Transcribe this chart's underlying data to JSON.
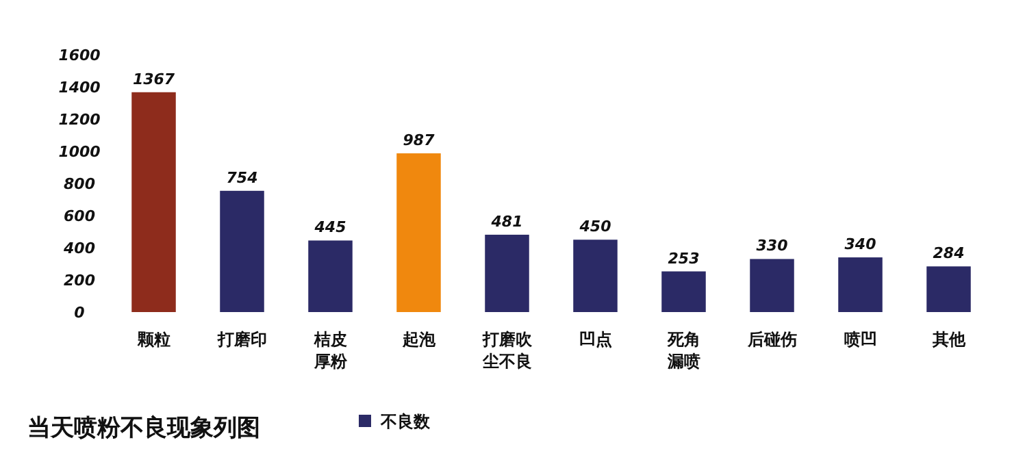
{
  "chart_data": {
    "type": "bar",
    "title": "当天喷粉不良现象列图",
    "categories": [
      "颗粒",
      "打磨印",
      "桔皮厚粉",
      "起泡",
      "打磨吹尘不良",
      "凹点",
      "死角漏喷",
      "后碰伤",
      "喷凹",
      "其他"
    ],
    "series": [
      {
        "name": "不良数",
        "color": "#2b2a66",
        "colors": [
          "#8e2c1c",
          "#2b2a66",
          "#2b2a66",
          "#f0880e",
          "#2b2a66",
          "#2b2a66",
          "#2b2a66",
          "#2b2a66",
          "#2b2a66",
          "#2b2a66"
        ],
        "values": [
          1367,
          754,
          445,
          987,
          481,
          450,
          253,
          330,
          340,
          284
        ]
      }
    ],
    "ylim": [
      0,
      1600
    ],
    "yticks": [
      0,
      200,
      400,
      600,
      800,
      1000,
      1200,
      1400,
      1600
    ],
    "data_labels": true,
    "legend": "bottom"
  }
}
